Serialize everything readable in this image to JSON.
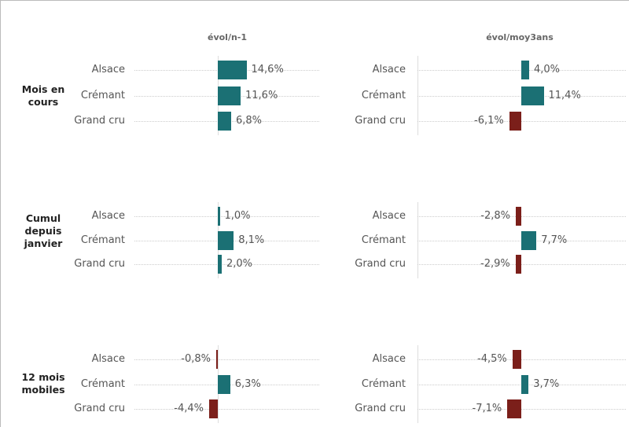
{
  "chart_data": [
    {
      "type": "bar",
      "title": "évol/n-1",
      "groups": [
        {
          "label": "Mois en cours",
          "categories": [
            "Alsace",
            "Crémant",
            "Grand cru"
          ],
          "values": [
            14.6,
            11.6,
            6.8
          ],
          "labels": [
            "14,6%",
            "11,6%",
            "6,8%"
          ]
        },
        {
          "label": "Cumul depuis janvier",
          "categories": [
            "Alsace",
            "Crémant",
            "Grand cru"
          ],
          "values": [
            1.0,
            8.1,
            2.0
          ],
          "labels": [
            "1,0%",
            "8,1%",
            "2,0%"
          ]
        },
        {
          "label": "12 mois mobiles",
          "categories": [
            "Alsace",
            "Crémant",
            "Grand cru"
          ],
          "values": [
            -0.8,
            6.3,
            -4.4
          ],
          "labels": [
            "-0,8%",
            "6,3%",
            "-4,4%"
          ]
        }
      ]
    },
    {
      "type": "bar",
      "title": "évol/moy3ans",
      "groups": [
        {
          "label": "Mois en cours",
          "categories": [
            "Alsace",
            "Crémant",
            "Grand cru"
          ],
          "values": [
            4.0,
            11.4,
            -6.1
          ],
          "labels": [
            "4,0%",
            "11,4%",
            "-6,1%"
          ]
        },
        {
          "label": "Cumul depuis janvier",
          "categories": [
            "Alsace",
            "Crémant",
            "Grand cru"
          ],
          "values": [
            -2.8,
            7.7,
            -2.9
          ],
          "labels": [
            "-2,8%",
            "7,7%",
            "-2,9%"
          ]
        },
        {
          "label": "12 mois mobiles",
          "categories": [
            "Alsace",
            "Crémant",
            "Grand cru"
          ],
          "values": [
            -4.5,
            3.7,
            -7.1
          ],
          "labels": [
            "-4,5%",
            "3,7%",
            "-7,1%"
          ]
        }
      ]
    }
  ],
  "colors": {
    "positive": "#1b7074",
    "negative": "#7b1f1a"
  },
  "group_labels": [
    [
      "Mois en",
      "cours"
    ],
    [
      "Cumul",
      "depuis",
      "janvier"
    ],
    [
      "12 mois",
      "mobiles"
    ]
  ]
}
